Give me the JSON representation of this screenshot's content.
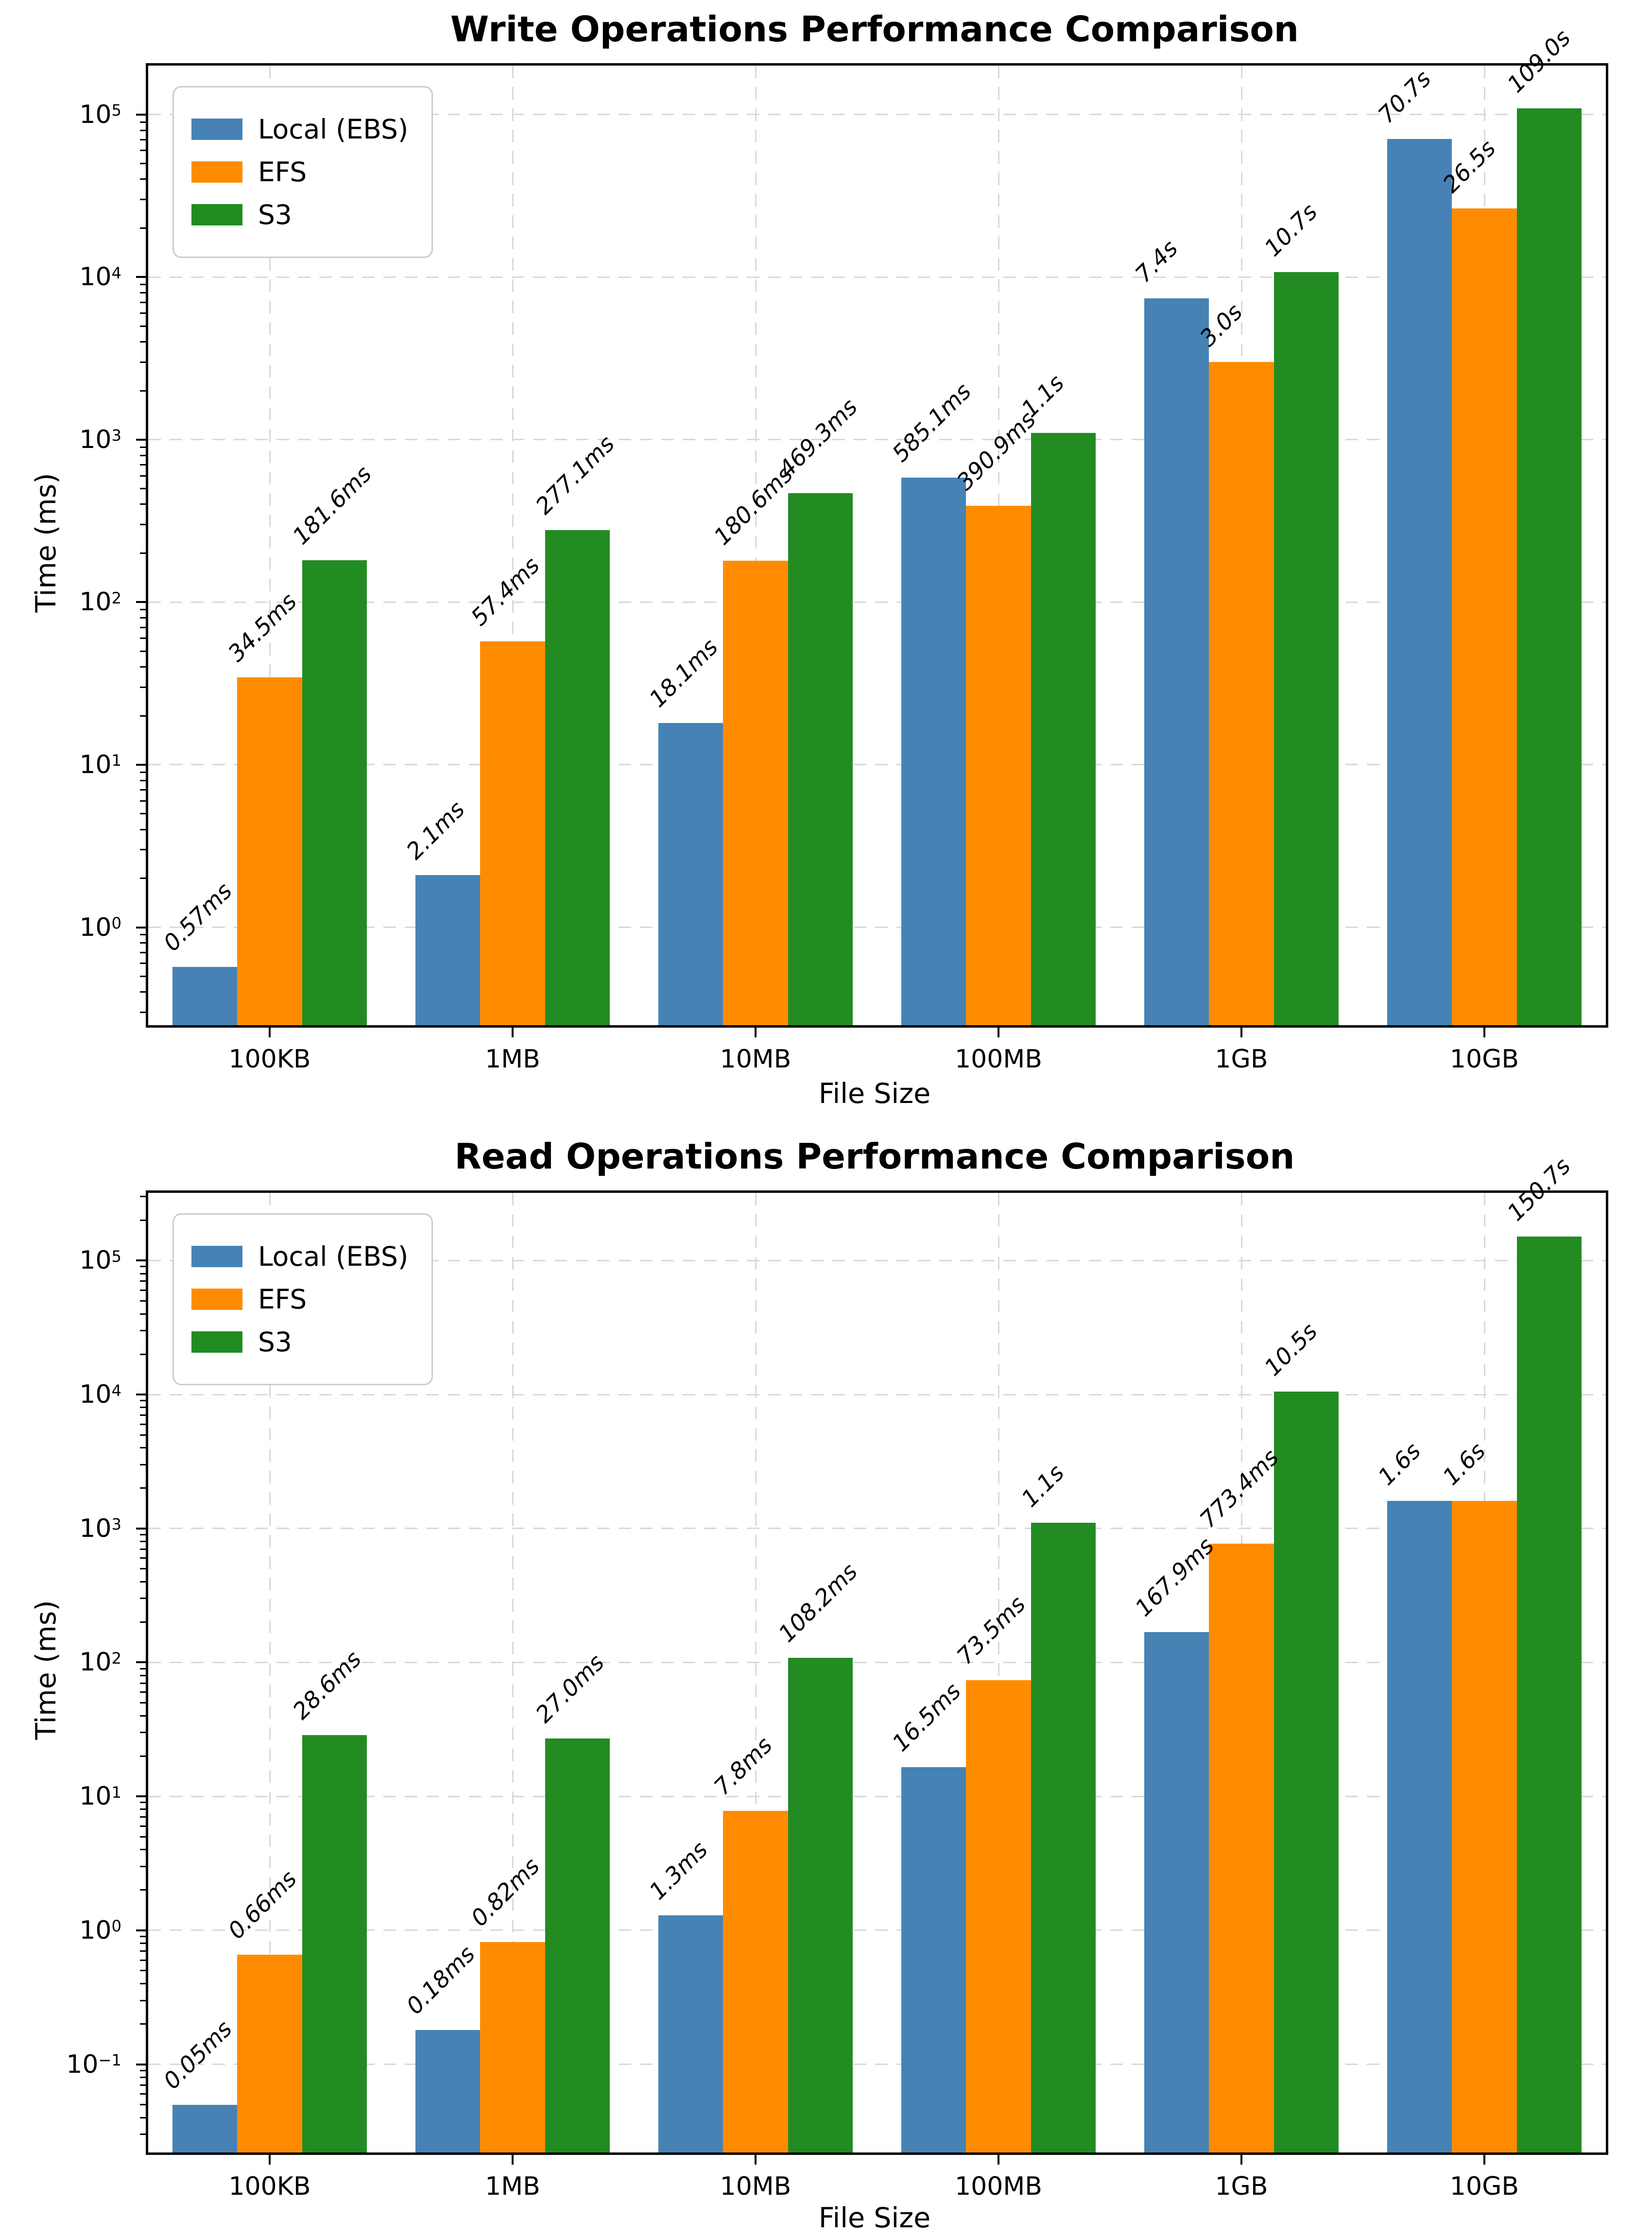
{
  "figure": {
    "background": "#ffffff"
  },
  "chart_data": [
    {
      "id": "write-operations",
      "type": "bar",
      "title": "Write Operations Performance Comparison",
      "xlabel": "File Size",
      "ylabel": "Time (ms)",
      "yscale": "log",
      "grid": true,
      "legend_position": "upper left",
      "categories": [
        "100KB",
        "1MB",
        "10MB",
        "100MB",
        "1GB",
        "10GB"
      ],
      "ylim": [
        0.25,
        200000
      ],
      "yticks": [
        0,
        1,
        2,
        3,
        4,
        5
      ],
      "series": [
        {
          "name": "Local (EBS)",
          "color": "#4682B4",
          "values": [
            0.57,
            2.1,
            18.1,
            585.1,
            7400,
            70700
          ],
          "labels": [
            "0.57ms",
            "2.1ms",
            "18.1ms",
            "585.1ms",
            "7.4s",
            "70.7s"
          ]
        },
        {
          "name": "EFS",
          "color": "#FF8C00",
          "values": [
            34.5,
            57.4,
            180.6,
            390.9,
            3000,
            26500
          ],
          "labels": [
            "34.5ms",
            "57.4ms",
            "180.6ms",
            "390.9ms",
            "3.0s",
            "26.5s"
          ]
        },
        {
          "name": "S3",
          "color": "#228B22",
          "values": [
            181.6,
            277.1,
            469.3,
            1100,
            10700,
            109000
          ],
          "labels": [
            "181.6ms",
            "277.1ms",
            "469.3ms",
            "1.1s",
            "10.7s",
            "109.0s"
          ]
        }
      ]
    },
    {
      "id": "read-operations",
      "type": "bar",
      "title": "Read Operations Performance Comparison",
      "xlabel": "File Size",
      "ylabel": "Time (ms)",
      "yscale": "log",
      "grid": true,
      "legend_position": "upper left",
      "categories": [
        "100KB",
        "1MB",
        "10MB",
        "100MB",
        "1GB",
        "10GB"
      ],
      "ylim": [
        0.022,
        320000
      ],
      "yticks": [
        -1,
        0,
        1,
        2,
        3,
        4,
        5
      ],
      "series": [
        {
          "name": "Local (EBS)",
          "color": "#4682B4",
          "values": [
            0.05,
            0.18,
            1.3,
            16.5,
            167.9,
            1600
          ],
          "labels": [
            "0.05ms",
            "0.18ms",
            "1.3ms",
            "16.5ms",
            "167.9ms",
            "1.6s"
          ]
        },
        {
          "name": "EFS",
          "color": "#FF8C00",
          "values": [
            0.66,
            0.82,
            7.8,
            73.5,
            773.4,
            1600
          ],
          "labels": [
            "0.66ms",
            "0.82ms",
            "7.8ms",
            "73.5ms",
            "773.4ms",
            "1.6s"
          ]
        },
        {
          "name": "S3",
          "color": "#228B22",
          "values": [
            28.6,
            27.0,
            108.2,
            1100,
            10500,
            150700
          ],
          "labels": [
            "28.6ms",
            "27.0ms",
            "108.2ms",
            "1.1s",
            "10.5s",
            "150.7s"
          ]
        }
      ]
    }
  ]
}
